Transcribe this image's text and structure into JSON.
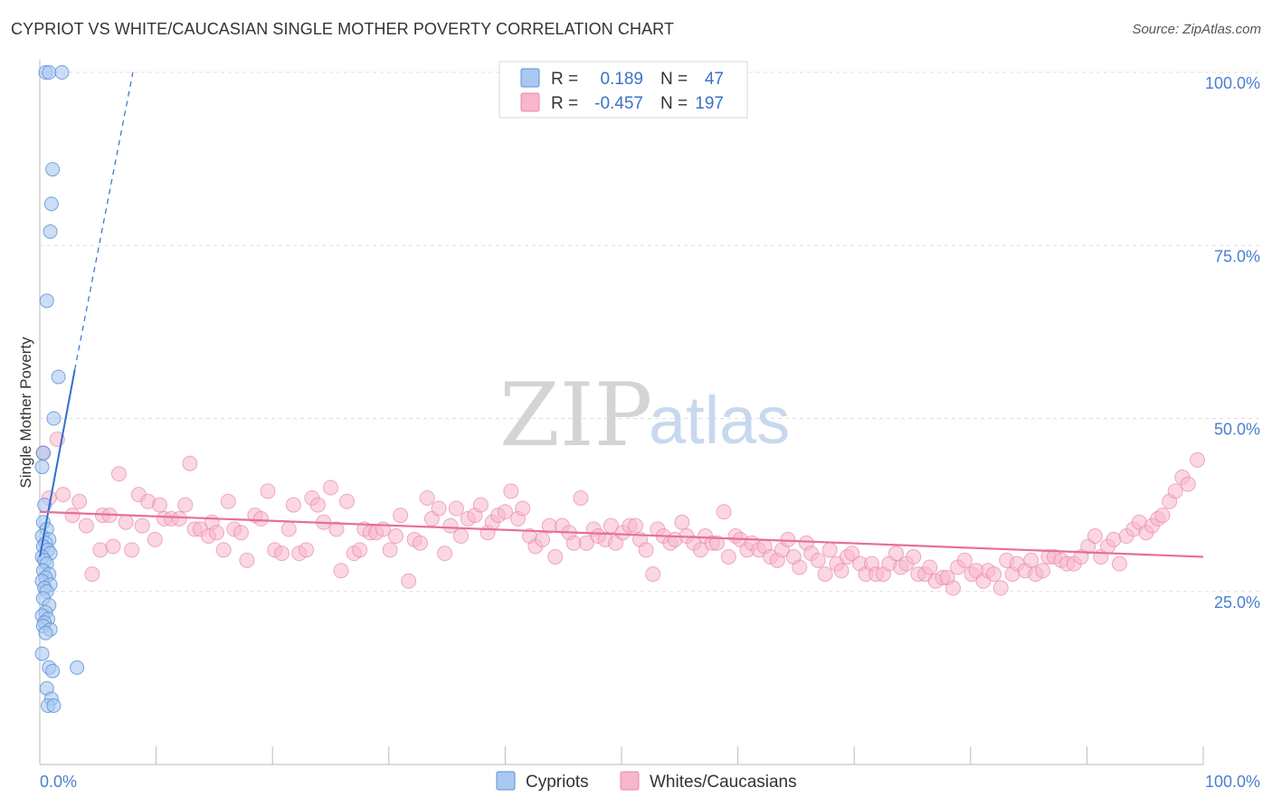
{
  "title": "CYPRIOT VS WHITE/CAUCASIAN SINGLE MOTHER POVERTY CORRELATION CHART",
  "source": "Source: ZipAtlas.com",
  "watermark": {
    "zip": "ZIP",
    "atlas": "atlas"
  },
  "legend_top": {
    "rows": [
      {
        "r_label": "R =",
        "r_value": "0.189",
        "n_label": "N =",
        "n_value": "47"
      },
      {
        "r_label": "R =",
        "r_value": "-0.457",
        "n_label": "N =",
        "n_value": "197"
      }
    ]
  },
  "legend_bottom": {
    "items": [
      "Cypriots",
      "Whites/Caucasians"
    ]
  },
  "colors": {
    "cypriot_fill": "#a9c8f0",
    "cypriot_stroke": "#5b8fd6",
    "cypriot_line": "#2f6fd0",
    "white_fill": "#f7b6ca",
    "white_stroke": "#e88aa8",
    "white_line": "#e66f98",
    "grid": "#dddddd",
    "tick_label": "#4a7fd0"
  },
  "chart_data": {
    "type": "scatter",
    "title": "CYPRIOT VS WHITE/CAUCASIAN SINGLE MOTHER POVERTY CORRELATION CHART",
    "xlabel": "",
    "ylabel": "Single Mother Poverty",
    "xlim": [
      0,
      100
    ],
    "ylim": [
      0,
      100
    ],
    "x_tick_labels": [
      "0.0%",
      "100.0%"
    ],
    "y_tick_labels": [
      "25.0%",
      "50.0%",
      "75.0%",
      "100.0%"
    ],
    "y_ticks": [
      25,
      50,
      75,
      100
    ],
    "grid": true,
    "legend_position": "top-center",
    "series": [
      {
        "name": "Cypriots",
        "r": 0.189,
        "n": 47,
        "trend": {
          "x0": 0,
          "y0": 30,
          "x1": 3,
          "y1": 57,
          "dashed_to": {
            "x": 8,
            "y": 100
          }
        },
        "points": [
          [
            0.5,
            100
          ],
          [
            0.8,
            100
          ],
          [
            1.9,
            100
          ],
          [
            1.1,
            86
          ],
          [
            1.0,
            81
          ],
          [
            0.9,
            77
          ],
          [
            0.6,
            67
          ],
          [
            1.6,
            56
          ],
          [
            1.2,
            50
          ],
          [
            0.3,
            45
          ],
          [
            0.2,
            43
          ],
          [
            0.4,
            37.5
          ],
          [
            0.3,
            35
          ],
          [
            0.6,
            34
          ],
          [
            0.2,
            33
          ],
          [
            0.8,
            32.5
          ],
          [
            0.5,
            32
          ],
          [
            0.3,
            31.5
          ],
          [
            0.7,
            31
          ],
          [
            0.9,
            30.5
          ],
          [
            0.2,
            30
          ],
          [
            0.4,
            29.5
          ],
          [
            0.6,
            29
          ],
          [
            0.3,
            28
          ],
          [
            0.8,
            27.5
          ],
          [
            0.5,
            27
          ],
          [
            0.2,
            26.5
          ],
          [
            0.9,
            26
          ],
          [
            0.4,
            25.5
          ],
          [
            0.6,
            25
          ],
          [
            0.3,
            24
          ],
          [
            0.8,
            23
          ],
          [
            0.5,
            22
          ],
          [
            0.2,
            21.5
          ],
          [
            0.7,
            21
          ],
          [
            0.4,
            20.5
          ],
          [
            0.3,
            20
          ],
          [
            0.9,
            19.5
          ],
          [
            0.5,
            19
          ],
          [
            0.2,
            16
          ],
          [
            0.8,
            14
          ],
          [
            1.1,
            13.5
          ],
          [
            3.2,
            14
          ],
          [
            0.6,
            11
          ],
          [
            1.0,
            9.5
          ],
          [
            0.7,
            8.5
          ],
          [
            1.2,
            8.5
          ]
        ]
      },
      {
        "name": "Whites/Caucasians",
        "r": -0.457,
        "n": 197,
        "trend": {
          "x0": 0,
          "y0": 36.5,
          "x1": 100,
          "y1": 30
        },
        "points": [
          [
            0.3,
            45
          ],
          [
            1.5,
            47
          ],
          [
            0.8,
            38.5
          ],
          [
            2.0,
            39
          ],
          [
            2.8,
            36
          ],
          [
            3.4,
            38
          ],
          [
            4.0,
            34.5
          ],
          [
            4.5,
            27.5
          ],
          [
            5.4,
            36
          ],
          [
            5.2,
            31
          ],
          [
            6.0,
            36
          ],
          [
            6.3,
            31.5
          ],
          [
            6.8,
            42
          ],
          [
            7.4,
            35
          ],
          [
            7.9,
            31
          ],
          [
            8.5,
            39
          ],
          [
            8.8,
            34.5
          ],
          [
            9.3,
            38
          ],
          [
            9.9,
            32.5
          ],
          [
            10.3,
            37.5
          ],
          [
            10.7,
            35.5
          ],
          [
            11.3,
            35.5
          ],
          [
            12.0,
            35.5
          ],
          [
            12.5,
            37.5
          ],
          [
            12.9,
            43.5
          ],
          [
            13.3,
            34
          ],
          [
            13.8,
            34
          ],
          [
            14.5,
            33
          ],
          [
            14.8,
            35
          ],
          [
            15.2,
            33.5
          ],
          [
            15.8,
            31
          ],
          [
            16.2,
            38
          ],
          [
            16.7,
            34
          ],
          [
            17.3,
            33.5
          ],
          [
            17.8,
            29.5
          ],
          [
            18.5,
            36
          ],
          [
            19.0,
            35.5
          ],
          [
            19.6,
            39.5
          ],
          [
            20.2,
            31
          ],
          [
            20.8,
            30.5
          ],
          [
            21.4,
            34
          ],
          [
            21.8,
            37.5
          ],
          [
            22.3,
            30.5
          ],
          [
            22.9,
            31
          ],
          [
            23.4,
            38.5
          ],
          [
            23.9,
            37.5
          ],
          [
            24.4,
            35
          ],
          [
            25.0,
            40
          ],
          [
            25.5,
            34
          ],
          [
            25.9,
            28
          ],
          [
            26.4,
            38
          ],
          [
            27.0,
            30.5
          ],
          [
            27.5,
            31
          ],
          [
            27.9,
            34
          ],
          [
            28.4,
            33.5
          ],
          [
            28.9,
            33.5
          ],
          [
            29.5,
            34
          ],
          [
            30.1,
            31
          ],
          [
            30.6,
            33
          ],
          [
            31.0,
            36
          ],
          [
            31.7,
            26.5
          ],
          [
            32.2,
            32.5
          ],
          [
            32.7,
            32
          ],
          [
            33.3,
            38.5
          ],
          [
            33.7,
            35.5
          ],
          [
            34.3,
            37
          ],
          [
            34.8,
            30.5
          ],
          [
            35.3,
            34.5
          ],
          [
            35.8,
            37
          ],
          [
            36.2,
            33
          ],
          [
            36.8,
            35.5
          ],
          [
            37.4,
            36
          ],
          [
            37.9,
            37.5
          ],
          [
            38.5,
            33.5
          ],
          [
            38.9,
            35
          ],
          [
            39.4,
            36
          ],
          [
            40.0,
            36.5
          ],
          [
            40.5,
            39.5
          ],
          [
            41.1,
            35.5
          ],
          [
            41.5,
            37
          ],
          [
            42.1,
            33
          ],
          [
            42.6,
            31.5
          ],
          [
            43.2,
            32.5
          ],
          [
            43.8,
            34.5
          ],
          [
            44.3,
            30
          ],
          [
            44.9,
            34.5
          ],
          [
            45.5,
            33.5
          ],
          [
            45.9,
            32
          ],
          [
            46.5,
            38.5
          ],
          [
            47.0,
            32
          ],
          [
            47.6,
            34
          ],
          [
            48.0,
            33
          ],
          [
            48.6,
            32.5
          ],
          [
            49.1,
            34.5
          ],
          [
            49.5,
            32
          ],
          [
            50.1,
            33.5
          ],
          [
            50.7,
            34.5
          ],
          [
            51.2,
            34.5
          ],
          [
            51.6,
            32.5
          ],
          [
            52.1,
            31
          ],
          [
            52.7,
            27.5
          ],
          [
            53.1,
            34
          ],
          [
            53.6,
            33
          ],
          [
            54.2,
            32
          ],
          [
            54.6,
            32.5
          ],
          [
            55.2,
            35
          ],
          [
            55.6,
            33
          ],
          [
            56.2,
            32
          ],
          [
            56.8,
            31
          ],
          [
            57.2,
            33
          ],
          [
            57.8,
            32
          ],
          [
            58.2,
            32
          ],
          [
            58.8,
            36.5
          ],
          [
            59.2,
            30
          ],
          [
            59.8,
            33
          ],
          [
            60.2,
            32.5
          ],
          [
            60.8,
            31
          ],
          [
            61.2,
            32
          ],
          [
            61.8,
            31
          ],
          [
            62.3,
            31.5
          ],
          [
            62.8,
            30
          ],
          [
            63.4,
            29.5
          ],
          [
            63.8,
            31
          ],
          [
            64.3,
            32.5
          ],
          [
            64.8,
            30
          ],
          [
            65.3,
            28.5
          ],
          [
            65.9,
            32
          ],
          [
            66.3,
            30.5
          ],
          [
            66.9,
            29.5
          ],
          [
            67.5,
            27.5
          ],
          [
            67.9,
            31
          ],
          [
            68.5,
            29
          ],
          [
            68.9,
            28
          ],
          [
            69.4,
            30
          ],
          [
            69.8,
            30.5
          ],
          [
            70.5,
            29
          ],
          [
            71.0,
            27.5
          ],
          [
            71.5,
            29
          ],
          [
            71.9,
            27.5
          ],
          [
            72.5,
            27.5
          ],
          [
            73.0,
            29
          ],
          [
            73.6,
            30.5
          ],
          [
            74.0,
            28.5
          ],
          [
            74.5,
            29
          ],
          [
            75.1,
            30
          ],
          [
            75.5,
            27.5
          ],
          [
            76.1,
            27.5
          ],
          [
            76.5,
            28.5
          ],
          [
            77.0,
            26.5
          ],
          [
            77.6,
            27
          ],
          [
            78.0,
            27
          ],
          [
            78.5,
            25.5
          ],
          [
            78.9,
            28.5
          ],
          [
            79.5,
            29.5
          ],
          [
            80.1,
            27.5
          ],
          [
            80.5,
            28
          ],
          [
            81.1,
            26.5
          ],
          [
            81.5,
            28
          ],
          [
            82.0,
            27.5
          ],
          [
            82.6,
            25.5
          ],
          [
            83.1,
            29.5
          ],
          [
            83.6,
            27.5
          ],
          [
            84.0,
            29
          ],
          [
            84.7,
            28
          ],
          [
            85.2,
            29.5
          ],
          [
            85.6,
            27.5
          ],
          [
            86.2,
            28
          ],
          [
            86.7,
            30
          ],
          [
            87.2,
            30
          ],
          [
            87.8,
            29.5
          ],
          [
            88.3,
            29
          ],
          [
            88.9,
            29
          ],
          [
            89.5,
            30
          ],
          [
            90.1,
            31.5
          ],
          [
            90.7,
            33
          ],
          [
            91.2,
            30
          ],
          [
            91.8,
            31.5
          ],
          [
            92.3,
            32.5
          ],
          [
            92.8,
            29
          ],
          [
            93.4,
            33
          ],
          [
            94.0,
            34
          ],
          [
            94.5,
            35
          ],
          [
            95.1,
            33.5
          ],
          [
            95.6,
            34.5
          ],
          [
            96.1,
            35.5
          ],
          [
            96.5,
            36
          ],
          [
            97.1,
            38
          ],
          [
            97.6,
            39.5
          ],
          [
            98.2,
            41.5
          ],
          [
            98.7,
            40.5
          ],
          [
            99.5,
            44
          ]
        ]
      }
    ]
  }
}
